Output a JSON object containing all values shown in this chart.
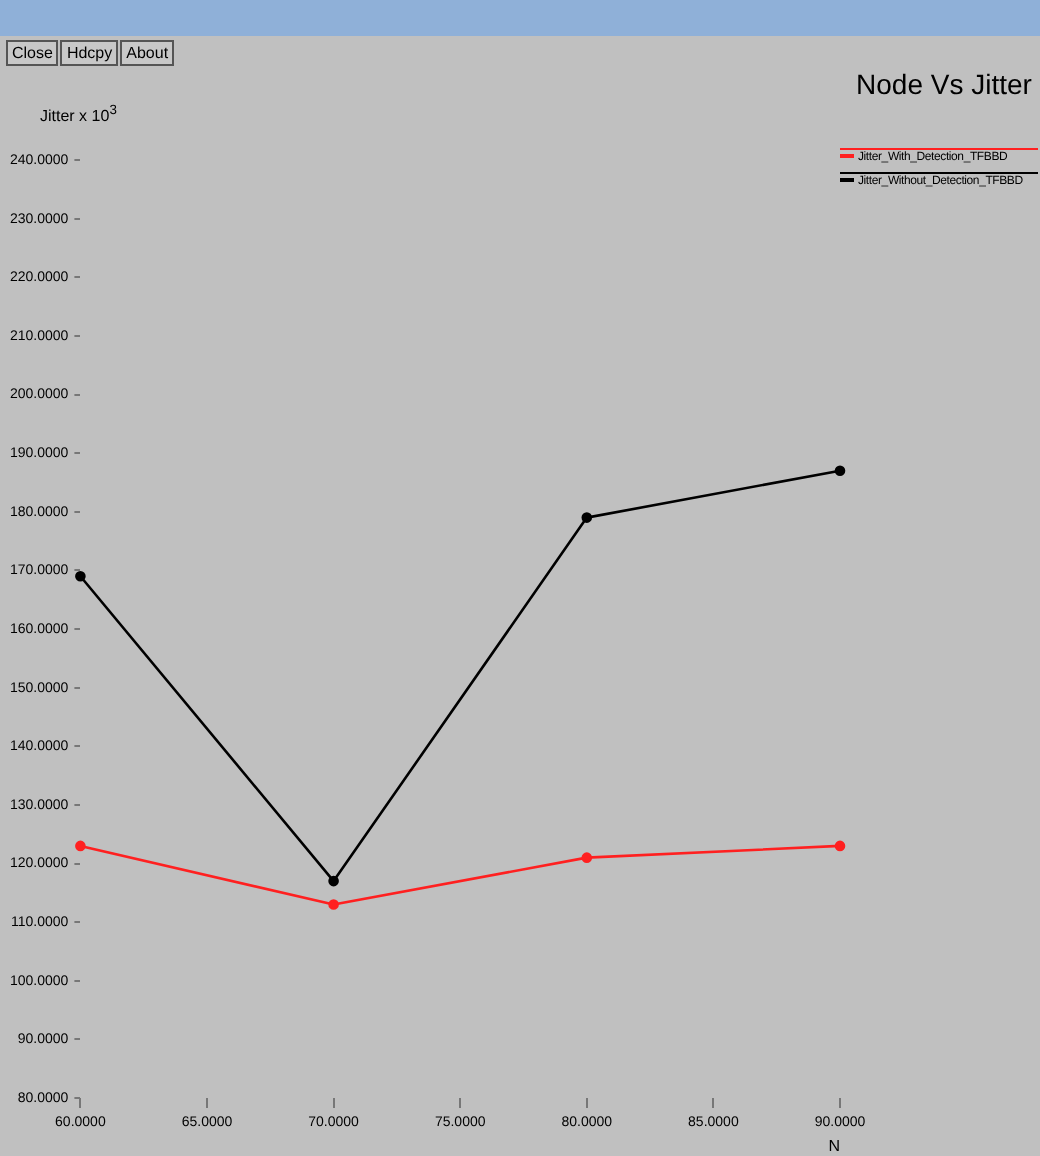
{
  "chart_data": {
    "type": "line",
    "title": "Node Vs Jitter",
    "xlabel": "N",
    "ylabel": "Jitter x 10$^{3}$",
    "annotations": [
      "Close",
      "Hdcpy",
      "About"
    ],
    "x": [
      60,
      70,
      80,
      90
    ],
    "series": [
      {
        "name": "Jitter_With_Detection_TFBBD",
        "color": "#ff2020",
        "values": [
          123,
          113,
          121,
          123
        ]
      },
      {
        "name": "Jitter_Without_Detection_TFBBD",
        "color": "#000000",
        "values": [
          169,
          117,
          179,
          187
        ]
      }
    ],
    "xlim": [
      60,
      90
    ],
    "ylim": [
      80,
      240
    ],
    "xticks": [
      {
        "value": 60,
        "label": "60.0000"
      },
      {
        "value": 65,
        "label": "65.0000"
      },
      {
        "value": 70,
        "label": "70.0000"
      },
      {
        "value": 75,
        "label": "75.0000"
      },
      {
        "value": 80,
        "label": "80.0000"
      },
      {
        "value": 85,
        "label": "85.0000"
      },
      {
        "value": 90,
        "label": "90.0000"
      }
    ],
    "yticks": [
      {
        "value": 80,
        "label": "80.0000"
      },
      {
        "value": 90,
        "label": "90.0000"
      },
      {
        "value": 100,
        "label": "100.0000"
      },
      {
        "value": 110,
        "label": "110.0000"
      },
      {
        "value": 120,
        "label": "120.0000"
      },
      {
        "value": 130,
        "label": "130.0000"
      },
      {
        "value": 140,
        "label": "140.0000"
      },
      {
        "value": 150,
        "label": "150.0000"
      },
      {
        "value": 160,
        "label": "160.0000"
      },
      {
        "value": 170,
        "label": "170.0000"
      },
      {
        "value": 180,
        "label": "180.0000"
      },
      {
        "value": 190,
        "label": "190.0000"
      },
      {
        "value": 200,
        "label": "200.0000"
      },
      {
        "value": 210,
        "label": "210.0000"
      },
      {
        "value": 220,
        "label": "220.0000"
      },
      {
        "value": 230,
        "label": "230.0000"
      },
      {
        "value": 240,
        "label": "240.0000"
      }
    ],
    "grid": false,
    "legend": "top right",
    "marker": "circle",
    "line_style": "solid"
  }
}
